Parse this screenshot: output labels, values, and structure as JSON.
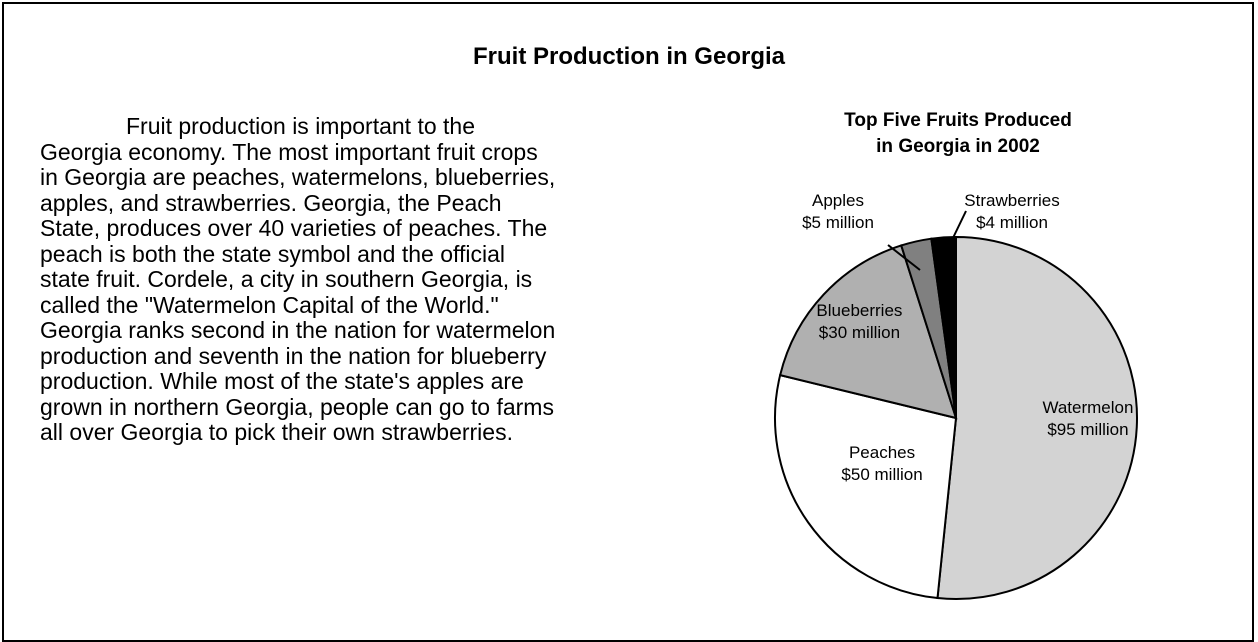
{
  "page": {
    "title": "Fruit Production in Georgia",
    "passage": "Fruit production is important to the Georgia economy. The most important fruit crops in Georgia are peaches, watermelons, blueberries, apples, and strawberries. Georgia, the Peach State, produces over 40 varieties of peaches. The peach is both the state symbol and the official state fruit. Cordele, a city in southern Georgia, is called the \"Watermelon Capital of the World.\" Georgia ranks second in the nation for watermelon production and seventh in the nation for blueberry production. While most of the state's apples are grown in northern Georgia, people can go to farms all over Georgia to pick their own strawberries."
  },
  "chart_data": {
    "type": "pie",
    "title_lines": [
      "Top Five Fruits Produced",
      "in Georgia in 2002"
    ],
    "unit": "million dollars",
    "slices": [
      {
        "name": "Watermelon",
        "value": 95,
        "label": "$95 million",
        "color": "#d3d3d3"
      },
      {
        "name": "Peaches",
        "value": 50,
        "label": "$50 million",
        "color": "#ffffff"
      },
      {
        "name": "Blueberries",
        "value": 30,
        "label": "$30 million",
        "color": "#b0b0b0"
      },
      {
        "name": "Apples",
        "value": 5,
        "label": "$5 million",
        "color": "#808080"
      },
      {
        "name": "Strawberries",
        "value": 4,
        "label": "$4 million",
        "color": "#000000"
      }
    ],
    "start_angle_deg": 0,
    "direction": "clockwise",
    "outline_color": "#000000",
    "labels_outside": [
      "Apples",
      "Strawberries"
    ]
  }
}
